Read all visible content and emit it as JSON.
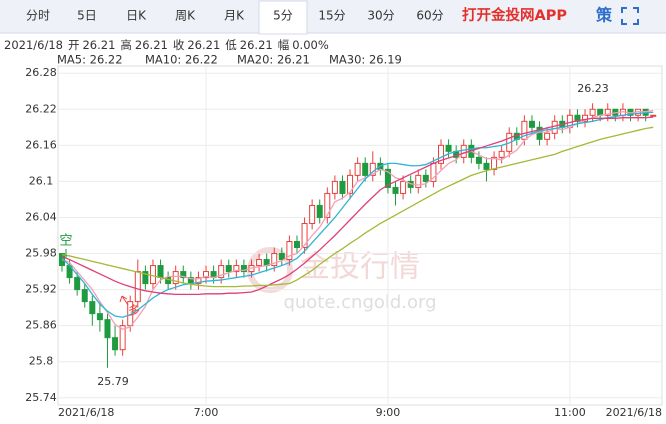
{
  "tabs": [
    "分时",
    "5日",
    "日K",
    "周K",
    "月K",
    "5分",
    "15分",
    "30分",
    "60分"
  ],
  "active_tab": 5,
  "app_link": "打开金投网APP",
  "strategy_icon": "策",
  "quote": {
    "date": "2021/6/18",
    "items": [
      {
        "label": "开",
        "value": "26.21"
      },
      {
        "label": "高",
        "value": "26.21"
      },
      {
        "label": "收",
        "value": "26.21"
      },
      {
        "label": "低",
        "value": "26.21"
      },
      {
        "label": "幅",
        "value": "0.00%"
      }
    ]
  },
  "watermark": {
    "text": "金投行情",
    "url": "quote.cngold.org"
  },
  "chart_data": {
    "type": "candlestick",
    "up_color": "#e8413b",
    "down_color": "#1e9a40",
    "grid": true,
    "ylim": [
      25.728,
      26.292
    ],
    "yticks": [
      26.28,
      26.22,
      26.16,
      26.1,
      26.04,
      25.98,
      25.92,
      25.86,
      25.8,
      25.74
    ],
    "categories": [
      "2021/6/18",
      null,
      null,
      null,
      null,
      null,
      null,
      null,
      null,
      null,
      null,
      null,
      null,
      null,
      null,
      null,
      null,
      null,
      null,
      "7:00",
      null,
      null,
      null,
      null,
      null,
      null,
      null,
      null,
      null,
      null,
      null,
      null,
      null,
      null,
      null,
      null,
      null,
      null,
      null,
      null,
      null,
      null,
      null,
      "9:00",
      null,
      null,
      null,
      null,
      null,
      null,
      null,
      null,
      null,
      null,
      null,
      null,
      null,
      null,
      null,
      null,
      null,
      null,
      null,
      null,
      null,
      null,
      null,
      "11:00",
      null,
      null,
      null,
      null,
      null,
      null,
      null,
      null,
      null,
      null,
      "2021/6/18"
    ],
    "ohlc": [
      [
        25.98,
        25.98,
        25.95,
        25.96
      ],
      [
        25.96,
        25.97,
        25.93,
        25.94
      ],
      [
        25.94,
        25.95,
        25.91,
        25.92
      ],
      [
        25.92,
        25.93,
        25.89,
        25.9
      ],
      [
        25.9,
        25.91,
        25.86,
        25.88
      ],
      [
        25.88,
        25.9,
        25.85,
        25.87
      ],
      [
        25.87,
        25.88,
        25.79,
        25.84
      ],
      [
        25.84,
        25.86,
        25.81,
        25.82
      ],
      [
        25.82,
        25.87,
        25.81,
        25.86
      ],
      [
        25.86,
        25.91,
        25.85,
        25.9
      ],
      [
        25.9,
        25.97,
        25.89,
        25.95
      ],
      [
        25.95,
        25.96,
        25.92,
        25.93
      ],
      [
        25.93,
        25.97,
        25.92,
        25.96
      ],
      [
        25.96,
        25.97,
        25.93,
        25.94
      ],
      [
        25.94,
        25.95,
        25.92,
        25.93
      ],
      [
        25.93,
        25.96,
        25.92,
        25.95
      ],
      [
        25.95,
        25.96,
        25.93,
        25.94
      ],
      [
        25.94,
        25.95,
        25.92,
        25.93
      ],
      [
        25.93,
        25.95,
        25.92,
        25.94
      ],
      [
        25.94,
        25.96,
        25.93,
        25.95
      ],
      [
        25.95,
        25.96,
        25.93,
        25.94
      ],
      [
        25.94,
        25.97,
        25.93,
        25.96
      ],
      [
        25.96,
        25.97,
        25.94,
        25.95
      ],
      [
        25.95,
        25.97,
        25.94,
        25.96
      ],
      [
        25.96,
        25.97,
        25.94,
        25.95
      ],
      [
        25.95,
        25.97,
        25.94,
        25.96
      ],
      [
        25.96,
        25.98,
        25.95,
        25.97
      ],
      [
        25.97,
        25.98,
        25.95,
        25.96
      ],
      [
        25.96,
        25.99,
        25.95,
        25.98
      ],
      [
        25.98,
        25.99,
        25.96,
        25.97
      ],
      [
        25.97,
        26.01,
        25.96,
        26.0
      ],
      [
        26.0,
        26.01,
        25.98,
        25.99
      ],
      [
        25.99,
        26.04,
        25.98,
        26.03
      ],
      [
        26.03,
        26.07,
        26.02,
        26.06
      ],
      [
        26.06,
        26.07,
        26.03,
        26.04
      ],
      [
        26.04,
        26.09,
        26.03,
        26.08
      ],
      [
        26.08,
        26.11,
        26.07,
        26.1
      ],
      [
        26.1,
        26.11,
        26.07,
        26.08
      ],
      [
        26.08,
        26.12,
        26.07,
        26.11
      ],
      [
        26.11,
        26.14,
        26.1,
        26.13
      ],
      [
        26.13,
        26.14,
        26.1,
        26.11
      ],
      [
        26.11,
        26.15,
        26.1,
        26.13
      ],
      [
        26.13,
        26.14,
        26.11,
        26.12
      ],
      [
        26.12,
        26.13,
        26.08,
        26.09
      ],
      [
        26.09,
        26.1,
        26.06,
        26.08
      ],
      [
        26.08,
        26.11,
        26.07,
        26.1
      ],
      [
        26.1,
        26.11,
        26.08,
        26.09
      ],
      [
        26.09,
        26.12,
        26.08,
        26.11
      ],
      [
        26.11,
        26.12,
        26.09,
        26.1
      ],
      [
        26.1,
        26.14,
        26.09,
        26.13
      ],
      [
        26.13,
        26.17,
        26.12,
        26.16
      ],
      [
        26.16,
        26.17,
        26.14,
        26.15
      ],
      [
        26.15,
        26.16,
        26.13,
        26.14
      ],
      [
        26.14,
        26.17,
        26.13,
        26.16
      ],
      [
        26.16,
        26.17,
        26.13,
        26.14
      ],
      [
        26.14,
        26.15,
        26.12,
        26.13
      ],
      [
        26.13,
        26.14,
        26.1,
        26.12
      ],
      [
        26.12,
        26.15,
        26.11,
        26.14
      ],
      [
        26.14,
        26.16,
        26.13,
        26.15
      ],
      [
        26.15,
        26.19,
        26.14,
        26.18
      ],
      [
        26.18,
        26.19,
        26.16,
        26.17
      ],
      [
        26.17,
        26.21,
        26.16,
        26.2
      ],
      [
        26.2,
        26.21,
        26.18,
        26.19
      ],
      [
        26.19,
        26.2,
        26.16,
        26.17
      ],
      [
        26.17,
        26.19,
        26.16,
        26.18
      ],
      [
        26.18,
        26.21,
        26.17,
        26.2
      ],
      [
        26.2,
        26.21,
        26.18,
        26.19
      ],
      [
        26.19,
        26.22,
        26.18,
        26.21
      ],
      [
        26.21,
        26.22,
        26.19,
        26.2
      ],
      [
        26.2,
        26.22,
        26.19,
        26.21
      ],
      [
        26.21,
        26.23,
        26.2,
        26.22
      ],
      [
        26.22,
        26.22,
        26.2,
        26.21
      ],
      [
        26.21,
        26.23,
        26.2,
        26.22
      ],
      [
        26.22,
        26.22,
        26.2,
        26.21
      ],
      [
        26.21,
        26.23,
        26.2,
        26.22
      ],
      [
        26.22,
        26.22,
        26.2,
        26.21
      ],
      [
        26.21,
        26.22,
        26.2,
        26.22
      ],
      [
        26.22,
        26.22,
        26.2,
        26.21
      ],
      [
        26.21,
        26.21,
        26.21,
        26.21
      ]
    ],
    "series": [
      {
        "name": "MA5: 26.22",
        "color": "#f2a0b6",
        "values": [
          25.97,
          25.965,
          25.95,
          25.935,
          25.92,
          25.9,
          25.882,
          25.862,
          25.854,
          25.858,
          25.874,
          25.892,
          25.92,
          25.936,
          25.942,
          25.942,
          25.942,
          25.938,
          25.938,
          25.942,
          25.94,
          25.944,
          25.948,
          25.952,
          25.952,
          25.956,
          25.958,
          25.96,
          25.964,
          25.968,
          25.976,
          25.98,
          25.994,
          26.01,
          26.024,
          26.044,
          26.066,
          26.072,
          26.082,
          26.1,
          26.106,
          26.112,
          26.12,
          26.116,
          26.106,
          26.102,
          26.096,
          26.094,
          26.096,
          26.106,
          26.118,
          26.13,
          26.136,
          26.148,
          26.15,
          26.144,
          26.138,
          26.138,
          26.136,
          26.144,
          26.152,
          26.168,
          26.178,
          26.182,
          26.182,
          26.188,
          26.186,
          26.19,
          26.196,
          26.202,
          26.206,
          26.21,
          26.212,
          26.214,
          26.216,
          26.214,
          26.216,
          26.216,
          26.218
        ]
      },
      {
        "name": "MA10: 26.22",
        "color": "#2fb3d6",
        "values": [
          25.972,
          25.96,
          25.945,
          25.93,
          25.912,
          25.896,
          25.884,
          25.876,
          25.874,
          25.878,
          25.886,
          25.896,
          25.906,
          25.914,
          25.92,
          25.924,
          25.928,
          25.93,
          25.932,
          25.934,
          25.935,
          25.936,
          25.938,
          25.94,
          25.942,
          25.944,
          25.948,
          25.952,
          25.956,
          25.96,
          25.965,
          25.972,
          25.984,
          25.998,
          26.012,
          26.026,
          26.04,
          26.056,
          26.072,
          26.088,
          26.104,
          26.116,
          26.126,
          26.13,
          26.13,
          26.128,
          26.126,
          26.126,
          26.128,
          26.134,
          26.14,
          26.146,
          26.15,
          26.152,
          26.154,
          26.156,
          26.156,
          26.158,
          26.16,
          26.164,
          26.17,
          26.176,
          26.18,
          26.184,
          26.186,
          26.188,
          26.19,
          26.193,
          26.196,
          26.198,
          26.2,
          26.203,
          26.206,
          26.208,
          26.21,
          26.212,
          26.213,
          26.214,
          26.215
        ]
      },
      {
        "name": "MA20: 26.21",
        "color": "#df3f78",
        "values": [
          25.975,
          25.97,
          25.964,
          25.958,
          25.952,
          25.946,
          25.94,
          25.934,
          25.929,
          25.925,
          25.921,
          25.918,
          25.916,
          25.914,
          25.913,
          25.912,
          25.912,
          25.912,
          25.912,
          25.913,
          25.913,
          25.913,
          25.914,
          25.914,
          25.915,
          25.916,
          25.92,
          25.926,
          25.932,
          25.938,
          25.945,
          25.954,
          25.964,
          25.975,
          25.986,
          25.998,
          26.01,
          26.023,
          26.036,
          26.049,
          26.062,
          26.074,
          26.086,
          26.094,
          26.1,
          26.106,
          26.112,
          26.118,
          26.124,
          26.13,
          26.135,
          26.139,
          26.143,
          26.147,
          26.151,
          26.155,
          26.159,
          26.163,
          26.167,
          26.172,
          26.177,
          26.18,
          26.183,
          26.186,
          26.189,
          26.192,
          26.195,
          26.198,
          26.201,
          26.203,
          26.205,
          26.205,
          26.205,
          26.205,
          26.206,
          26.206,
          26.206,
          26.206,
          26.207
        ]
      },
      {
        "name": "MA30: 26.19",
        "color": "#a6b836",
        "values": [
          25.978,
          25.976,
          25.973,
          25.97,
          25.967,
          25.964,
          25.961,
          25.958,
          25.955,
          25.952,
          25.949,
          25.946,
          25.943,
          25.94,
          25.937,
          25.934,
          25.931,
          25.929,
          25.927,
          25.926,
          25.925,
          25.925,
          25.925,
          25.925,
          25.926,
          25.926,
          25.927,
          25.927,
          25.928,
          25.929,
          25.93,
          25.936,
          25.944,
          25.952,
          25.962,
          25.971,
          25.98,
          25.988,
          25.997,
          26.005,
          26.014,
          26.022,
          26.03,
          26.037,
          26.044,
          26.051,
          26.058,
          26.065,
          26.072,
          26.079,
          26.086,
          26.092,
          26.098,
          26.104,
          26.11,
          26.114,
          26.118,
          26.121,
          26.124,
          26.127,
          26.13,
          26.133,
          26.136,
          26.139,
          26.142,
          26.145,
          26.15,
          26.154,
          26.158,
          26.162,
          26.166,
          26.17,
          26.173,
          26.176,
          26.179,
          26.182,
          26.185,
          26.188,
          26.19
        ]
      }
    ],
    "annotations": {
      "short_signal": "空",
      "long_signal": "多",
      "max_label": "26.23",
      "min_label": "25.79"
    }
  }
}
